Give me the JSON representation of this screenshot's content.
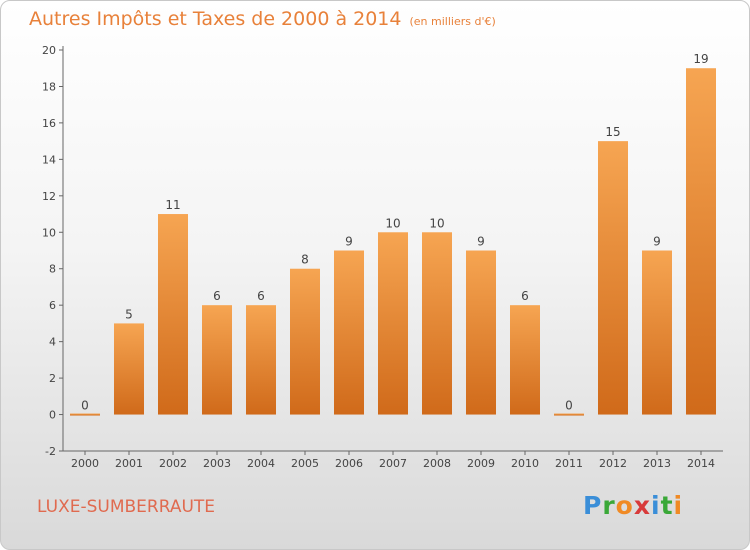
{
  "title": "Autres Impôts et Taxes de 2000 à 2014",
  "unit_note": "(en milliers d'€)",
  "commune": "LUXE-SUMBERRAUTE",
  "brand": {
    "letters": [
      "P",
      "r",
      "o",
      "x",
      "i",
      "t",
      "i"
    ],
    "colors": [
      "#3a8ed8",
      "#3aa838",
      "#f08a24",
      "#d83a3a",
      "#3a8ed8",
      "#3aa838",
      "#f08a24"
    ]
  },
  "colors": {
    "title": "#e8813a",
    "commune": "#e06a4f",
    "bar_top": "#f6a552",
    "bar_bottom": "#d06a1a",
    "axis": "#666666",
    "text": "#444444"
  },
  "chart_data": {
    "type": "bar",
    "title": "Autres Impôts et Taxes de 2000 à 2014",
    "ylabel": "",
    "xlabel": "",
    "categories": [
      "2000",
      "2001",
      "2002",
      "2003",
      "2004",
      "2005",
      "2006",
      "2007",
      "2008",
      "2009",
      "2010",
      "2011",
      "2012",
      "2013",
      "2014"
    ],
    "values": [
      0,
      5,
      11,
      6,
      6,
      8,
      9,
      10,
      10,
      9,
      6,
      0,
      15,
      9,
      19
    ],
    "data_labels": [
      "0",
      "5",
      "11",
      "6",
      "6",
      "8",
      "9",
      "10",
      "10",
      "9",
      "6",
      "0",
      "15",
      "9",
      "19"
    ],
    "ylim": [
      -2,
      20
    ],
    "yticks": [
      -2,
      0,
      2,
      4,
      6,
      8,
      10,
      12,
      14,
      16,
      18,
      20
    ],
    "grid": false,
    "legend": "none"
  }
}
